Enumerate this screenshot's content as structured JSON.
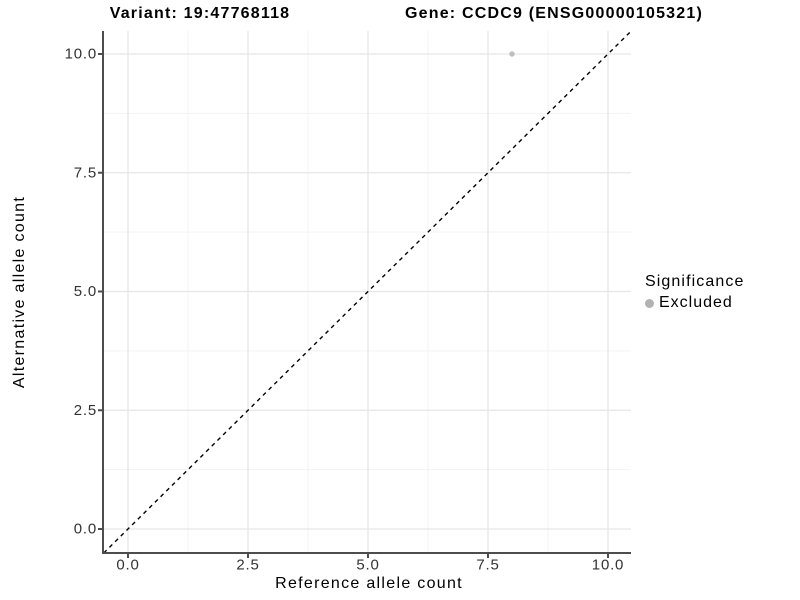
{
  "chart": {
    "titles": {
      "variant": "Variant: 19:47768118",
      "gene": "Gene: CCDC9 (ENSG00000105321)"
    },
    "chart_data": {
      "type": "scatter",
      "xlabel": "Reference allele count",
      "ylabel": "Alternative allele count",
      "x_ticks": [
        0.0,
        2.5,
        5.0,
        7.5,
        10.0
      ],
      "y_ticks": [
        0.0,
        2.5,
        5.0,
        7.5,
        10.0
      ],
      "x_minor_ticks": [
        1.25,
        3.75,
        6.25,
        8.75
      ],
      "y_minor_ticks": [
        1.25,
        3.75,
        6.25,
        8.75
      ],
      "xlim": [
        -0.52,
        10.48
      ],
      "ylim": [
        -0.5,
        10.48
      ],
      "grid": "major and minor, light grey on white",
      "series": [
        {
          "name": "Excluded",
          "color": "#bebebe",
          "points": [
            {
              "x": 8.0,
              "y": 10.0
            }
          ]
        }
      ],
      "reference_line": {
        "type": "identity y=x",
        "style": "dashed",
        "color": "#000000"
      },
      "legend": {
        "title": "Significance",
        "position": "right",
        "items": [
          {
            "label": "Excluded",
            "color": "#b2b2b2"
          }
        ]
      }
    },
    "colors": {
      "background": "#ffffff",
      "grid_major": "#e6e6e6",
      "grid_minor": "#f3f3f3",
      "axis_line": "#4d4d4d",
      "tick_label": "#333333",
      "title_text": "#000000",
      "point": "#bebebe"
    }
  }
}
